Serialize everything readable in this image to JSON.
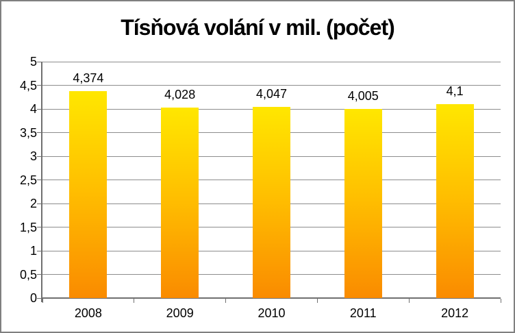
{
  "frame": {
    "border_color": "#7f7f7f",
    "background": "#ffffff"
  },
  "chart_data": {
    "type": "bar",
    "title": "Tísňová volání v mil. (počet)",
    "categories": [
      "2008",
      "2009",
      "2010",
      "2011",
      "2012"
    ],
    "values": [
      4.374,
      4.028,
      4.047,
      4.005,
      4.1
    ],
    "value_labels": [
      "4,374",
      "4,028",
      "4,047",
      "4,005",
      "4,1"
    ],
    "xlabel": "",
    "ylabel": "",
    "ylim": [
      0,
      5
    ],
    "ytick_step": 0.5,
    "ytick_labels": [
      "0",
      "0,5",
      "1",
      "1,5",
      "2",
      "2,5",
      "3",
      "3,5",
      "4",
      "4,5",
      "5"
    ],
    "grid": true,
    "legend": "none",
    "decimal_separator": ",",
    "colors": {
      "bar_gradient_top": "#ffe700",
      "bar_gradient_mid": "#ffbe00",
      "bar_gradient_bottom": "#fa8b00",
      "gridline": "#8c8c8c",
      "axis": "#6f6f6f",
      "text": "#000000"
    }
  }
}
